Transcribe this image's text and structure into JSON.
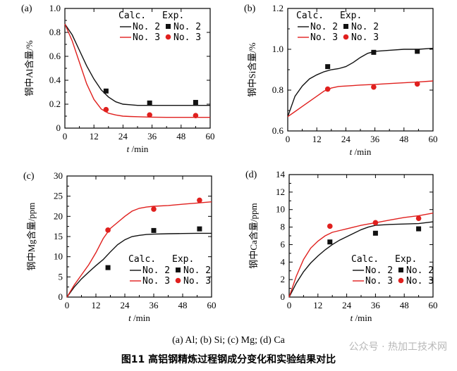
{
  "figure": {
    "subcaption": "(a) Al; (b) Si; (c) Mg; (d) Ca",
    "caption": "图11 高铝钢精炼过程钢成分变化和实验结果对比",
    "watermark": "公众号 · 热加工技术网"
  },
  "colors": {
    "no2": "#111111",
    "no3": "#e0201e"
  },
  "legend": {
    "calc": "Calc.",
    "exp": "Exp.",
    "no2": "No. 2",
    "no3": "No. 3"
  },
  "chart_data": [
    {
      "panel": "(a)",
      "type": "line+scatter",
      "xlabel_var": "t",
      "xlabel_unit": "/min",
      "ylabel": "钢中Al含量/%",
      "xlim": [
        0,
        60
      ],
      "ylim": [
        0,
        1.0
      ],
      "xticks": [
        0,
        12,
        24,
        36,
        48,
        60
      ],
      "yticks": [
        0,
        0.2,
        0.4,
        0.6,
        0.8,
        1.0
      ],
      "ytick_labels": [
        "0",
        "0.2",
        "0.4",
        "0.6",
        "0.8",
        "1.0"
      ],
      "series": [
        {
          "name": "No. 2",
          "kind": "calc",
          "color": "#111111",
          "x": [
            0,
            3,
            6,
            9,
            12,
            15,
            18,
            21,
            24,
            27,
            30,
            36,
            42,
            48,
            54,
            60
          ],
          "y": [
            0.87,
            0.78,
            0.65,
            0.52,
            0.41,
            0.32,
            0.26,
            0.22,
            0.2,
            0.195,
            0.19,
            0.19,
            0.19,
            0.19,
            0.19,
            0.19
          ]
        },
        {
          "name": "No. 3",
          "kind": "calc",
          "color": "#e0201e",
          "x": [
            0,
            3,
            6,
            9,
            12,
            15,
            18,
            21,
            24,
            27,
            30,
            36,
            42,
            48,
            54,
            60
          ],
          "y": [
            0.87,
            0.73,
            0.55,
            0.37,
            0.24,
            0.16,
            0.125,
            0.11,
            0.1,
            0.097,
            0.095,
            0.092,
            0.09,
            0.09,
            0.09,
            0.09
          ]
        },
        {
          "name": "No. 2",
          "kind": "exp",
          "color": "#111111",
          "x": [
            17,
            35,
            54
          ],
          "y": [
            0.31,
            0.21,
            0.215
          ]
        },
        {
          "name": "No. 3",
          "kind": "exp",
          "color": "#e0201e",
          "x": [
            17,
            35,
            54
          ],
          "y": [
            0.155,
            0.11,
            0.105
          ]
        }
      ]
    },
    {
      "panel": "(b)",
      "type": "line+scatter",
      "xlabel_var": "t",
      "xlabel_unit": "/min",
      "ylabel": "钢中Si含量/%",
      "xlim": [
        0,
        60
      ],
      "ylim": [
        0.6,
        1.2
      ],
      "xticks": [
        0,
        12,
        24,
        36,
        48,
        60
      ],
      "yticks": [
        0.6,
        0.8,
        1.0,
        1.2
      ],
      "ytick_labels": [
        "0.6",
        "0.8",
        "1.0",
        "1.2"
      ],
      "series": [
        {
          "name": "No. 2",
          "kind": "calc",
          "color": "#111111",
          "x": [
            0,
            3,
            6,
            9,
            12,
            15,
            18,
            21,
            24,
            27,
            30,
            33,
            36,
            42,
            48,
            54,
            60
          ],
          "y": [
            0.67,
            0.77,
            0.82,
            0.855,
            0.875,
            0.89,
            0.9,
            0.905,
            0.915,
            0.935,
            0.96,
            0.98,
            0.99,
            0.995,
            1.0,
            1.0,
            1.005
          ]
        },
        {
          "name": "No. 3",
          "kind": "calc",
          "color": "#e0201e",
          "x": [
            0,
            3,
            6,
            9,
            12,
            15,
            18,
            21,
            24,
            27,
            30,
            36,
            42,
            48,
            54,
            60
          ],
          "y": [
            0.67,
            0.695,
            0.72,
            0.745,
            0.77,
            0.795,
            0.81,
            0.818,
            0.82,
            0.822,
            0.825,
            0.828,
            0.832,
            0.836,
            0.84,
            0.845
          ]
        },
        {
          "name": "No. 2",
          "kind": "exp",
          "color": "#111111",
          "x": [
            16.5,
            35.5,
            53.5
          ],
          "y": [
            0.915,
            0.985,
            0.99
          ]
        },
        {
          "name": "No. 3",
          "kind": "exp",
          "color": "#e0201e",
          "x": [
            16.5,
            35.5,
            53.5
          ],
          "y": [
            0.805,
            0.815,
            0.83
          ]
        }
      ]
    },
    {
      "panel": "(c)",
      "type": "line+scatter",
      "xlabel_var": "t",
      "xlabel_unit": "/min",
      "ylabel": "钢中Mg含量/ppm",
      "xlim": [
        0,
        60
      ],
      "ylim": [
        0,
        30
      ],
      "xticks": [
        0,
        12,
        24,
        36,
        48,
        60
      ],
      "yticks": [
        0,
        5,
        10,
        15,
        20,
        25,
        30
      ],
      "ytick_labels": [
        "0",
        "5",
        "10",
        "15",
        "20",
        "25",
        "30"
      ],
      "series": [
        {
          "name": "No. 2",
          "kind": "calc",
          "color": "#111111",
          "x": [
            0,
            3,
            6,
            9,
            12,
            15,
            18,
            21,
            24,
            27,
            30,
            33,
            36,
            42,
            48,
            54,
            60
          ],
          "y": [
            0,
            2.5,
            4.5,
            6.2,
            7.8,
            9.3,
            11.2,
            13.0,
            14.2,
            15.0,
            15.3,
            15.5,
            15.6,
            15.7,
            15.75,
            15.8,
            15.8
          ]
        },
        {
          "name": "No. 3",
          "kind": "calc",
          "color": "#e0201e",
          "x": [
            0,
            3,
            6,
            9,
            12,
            15,
            18,
            21,
            24,
            27,
            30,
            33,
            36,
            42,
            48,
            54,
            60
          ],
          "y": [
            0,
            3,
            5.5,
            8,
            11,
            14.5,
            17,
            18.5,
            20,
            21.3,
            22,
            22.3,
            22.5,
            22.7,
            23,
            23.3,
            23.6
          ]
        },
        {
          "name": "No. 2",
          "kind": "exp",
          "color": "#111111",
          "x": [
            17,
            36,
            55
          ],
          "y": [
            7.3,
            16.5,
            16.9
          ]
        },
        {
          "name": "No. 3",
          "kind": "exp",
          "color": "#e0201e",
          "x": [
            17,
            36,
            55
          ],
          "y": [
            16.6,
            21.8,
            24.0
          ]
        }
      ]
    },
    {
      "panel": "(d)",
      "type": "line+scatter",
      "xlabel_var": "t",
      "xlabel_unit": "/min",
      "ylabel": "钢中Ca含量/ppm",
      "xlim": [
        0,
        60
      ],
      "ylim": [
        0,
        14
      ],
      "xticks": [
        0,
        12,
        24,
        36,
        48,
        60
      ],
      "yticks": [
        0,
        2,
        4,
        6,
        8,
        10,
        12,
        14
      ],
      "ytick_labels": [
        "0",
        "2",
        "4",
        "6",
        "8",
        "10",
        "12",
        "14"
      ],
      "series": [
        {
          "name": "No. 2",
          "kind": "calc",
          "color": "#111111",
          "x": [
            0,
            3,
            6,
            9,
            12,
            15,
            18,
            21,
            24,
            27,
            30,
            33,
            36,
            42,
            48,
            54,
            60
          ],
          "y": [
            0,
            1.6,
            2.9,
            3.9,
            4.7,
            5.4,
            6.0,
            6.5,
            6.9,
            7.3,
            7.7,
            8.0,
            8.2,
            8.3,
            8.35,
            8.4,
            8.6
          ]
        },
        {
          "name": "No. 3",
          "kind": "calc",
          "color": "#e0201e",
          "x": [
            0,
            3,
            6,
            9,
            12,
            15,
            18,
            21,
            24,
            27,
            30,
            33,
            36,
            42,
            48,
            54,
            60
          ],
          "y": [
            0,
            2.4,
            4.3,
            5.6,
            6.4,
            7.0,
            7.4,
            7.6,
            7.8,
            8.0,
            8.2,
            8.35,
            8.5,
            8.8,
            9.1,
            9.3,
            9.6
          ]
        },
        {
          "name": "No. 2",
          "kind": "exp",
          "color": "#111111",
          "x": [
            17,
            36,
            54
          ],
          "y": [
            6.3,
            7.3,
            7.8
          ]
        },
        {
          "name": "No. 3",
          "kind": "exp",
          "color": "#e0201e",
          "x": [
            17,
            36,
            54
          ],
          "y": [
            8.1,
            8.5,
            9.0
          ]
        }
      ]
    }
  ]
}
